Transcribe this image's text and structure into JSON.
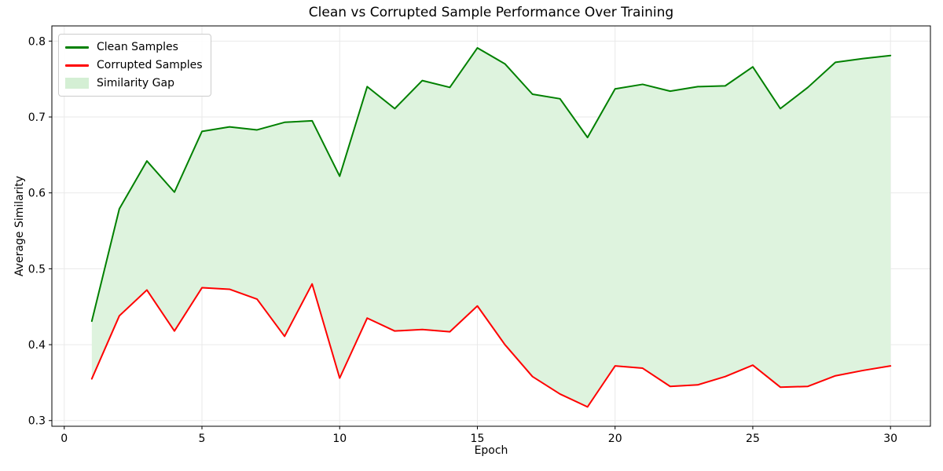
{
  "chart_data": {
    "type": "line",
    "title": "Clean vs Corrupted Sample Performance Over Training",
    "xlabel": "Epoch",
    "ylabel": "Average Similarity",
    "x": [
      1,
      2,
      3,
      4,
      5,
      6,
      7,
      8,
      9,
      10,
      11,
      12,
      13,
      14,
      15,
      16,
      17,
      18,
      19,
      20,
      21,
      22,
      23,
      24,
      25,
      26,
      27,
      28,
      29,
      30
    ],
    "series": [
      {
        "name": "Clean Samples",
        "color": "#008000",
        "values": [
          0.431,
          0.579,
          0.642,
          0.601,
          0.681,
          0.687,
          0.683,
          0.693,
          0.695,
          0.622,
          0.74,
          0.711,
          0.748,
          0.739,
          0.791,
          0.77,
          0.73,
          0.724,
          0.673,
          0.737,
          0.743,
          0.734,
          0.74,
          0.741,
          0.766,
          0.711,
          0.739,
          0.772,
          0.777,
          0.781
        ]
      },
      {
        "name": "Corrupted Samples",
        "color": "#ff0000",
        "values": [
          0.355,
          0.438,
          0.472,
          0.418,
          0.475,
          0.473,
          0.46,
          0.411,
          0.48,
          0.356,
          0.435,
          0.418,
          0.42,
          0.417,
          0.451,
          0.4,
          0.358,
          0.335,
          0.318,
          0.372,
          0.369,
          0.345,
          0.347,
          0.358,
          0.373,
          0.344,
          0.345,
          0.359,
          0.366,
          0.372
        ]
      }
    ],
    "fill_between": {
      "label": "Similarity Gap",
      "color": "#def3de"
    },
    "x_ticks": [
      0,
      5,
      10,
      15,
      20,
      25,
      30
    ],
    "x_tick_labels": [
      "0",
      "5",
      "10",
      "15",
      "20",
      "25",
      "30"
    ],
    "y_ticks": [
      0.3,
      0.4,
      0.5,
      0.6,
      0.7,
      0.8
    ],
    "y_tick_labels": [
      "0.3",
      "0.4",
      "0.5",
      "0.6",
      "0.7",
      "0.8"
    ],
    "xlim": [
      -0.45,
      31.45
    ],
    "ylim": [
      0.2925,
      0.82
    ],
    "grid": true,
    "grid_color": "#e9e9e9",
    "spine_color": "#000000",
    "legend_position": "upper left"
  }
}
